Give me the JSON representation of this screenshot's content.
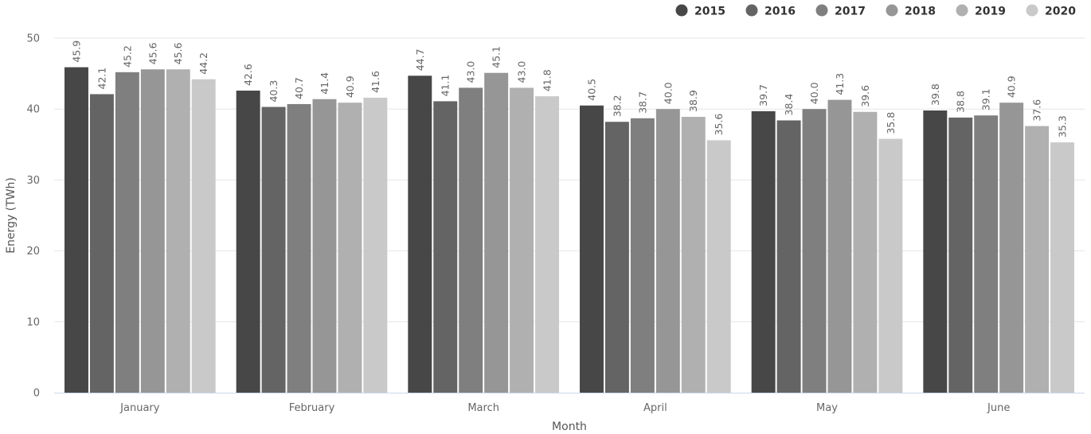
{
  "chart_data": {
    "type": "bar",
    "title": "",
    "xlabel": "Month",
    "ylabel": "Energy (TWh)",
    "ylim": [
      0,
      50
    ],
    "yticks": [
      0,
      10,
      20,
      30,
      40,
      50
    ],
    "grid": true,
    "legend_position": "top-right",
    "categories": [
      "January",
      "February",
      "March",
      "April",
      "May",
      "June"
    ],
    "series": [
      {
        "name": "2015",
        "color": "#474747",
        "values": [
          45.9,
          42.6,
          44.7,
          40.5,
          39.7,
          39.8
        ]
      },
      {
        "name": "2016",
        "color": "#646464",
        "values": [
          42.1,
          40.3,
          41.1,
          38.2,
          38.4,
          38.8
        ]
      },
      {
        "name": "2017",
        "color": "#7f7f7f",
        "values": [
          45.2,
          40.7,
          43.0,
          38.7,
          40.0,
          39.1
        ]
      },
      {
        "name": "2018",
        "color": "#969696",
        "values": [
          45.6,
          41.4,
          45.1,
          40.0,
          41.3,
          40.9
        ]
      },
      {
        "name": "2019",
        "color": "#b0b0b0",
        "values": [
          45.6,
          40.9,
          43.0,
          38.9,
          39.6,
          37.6
        ]
      },
      {
        "name": "2020",
        "color": "#c9c9c9",
        "values": [
          44.2,
          41.6,
          41.8,
          35.6,
          35.8,
          35.3
        ]
      }
    ]
  }
}
